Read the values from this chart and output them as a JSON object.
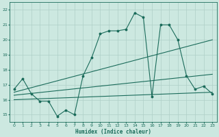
{
  "title": "",
  "xlabel": "Humidex (Indice chaleur)",
  "ylabel": "",
  "background_color": "#cce8e0",
  "line_color": "#1a6b5a",
  "grid_color": "#aecfc7",
  "xlim": [
    -0.5,
    23.5
  ],
  "ylim": [
    14.5,
    22.5
  ],
  "xticks": [
    0,
    1,
    2,
    3,
    4,
    5,
    6,
    7,
    8,
    9,
    10,
    11,
    12,
    13,
    14,
    15,
    16,
    17,
    18,
    19,
    20,
    21,
    22,
    23
  ],
  "yticks": [
    15,
    16,
    17,
    18,
    19,
    20,
    21,
    22
  ],
  "series1_x": [
    0,
    1,
    2,
    3,
    4,
    5,
    6,
    7,
    8,
    9,
    10,
    11,
    12,
    13,
    14,
    15,
    16,
    17,
    18,
    19,
    20,
    21,
    22,
    23
  ],
  "series1_y": [
    16.7,
    17.4,
    16.4,
    15.9,
    15.9,
    14.9,
    15.3,
    15.0,
    17.6,
    18.8,
    20.4,
    20.6,
    20.6,
    20.7,
    21.8,
    21.5,
    16.2,
    21.0,
    21.0,
    20.0,
    17.6,
    16.7,
    16.9,
    16.4
  ],
  "series2_x": [
    0,
    23
  ],
  "series2_y": [
    16.5,
    20.0
  ],
  "series3_x": [
    0,
    23
  ],
  "series3_y": [
    16.3,
    17.7
  ],
  "series4_x": [
    0,
    23
  ],
  "series4_y": [
    16.0,
    16.5
  ]
}
